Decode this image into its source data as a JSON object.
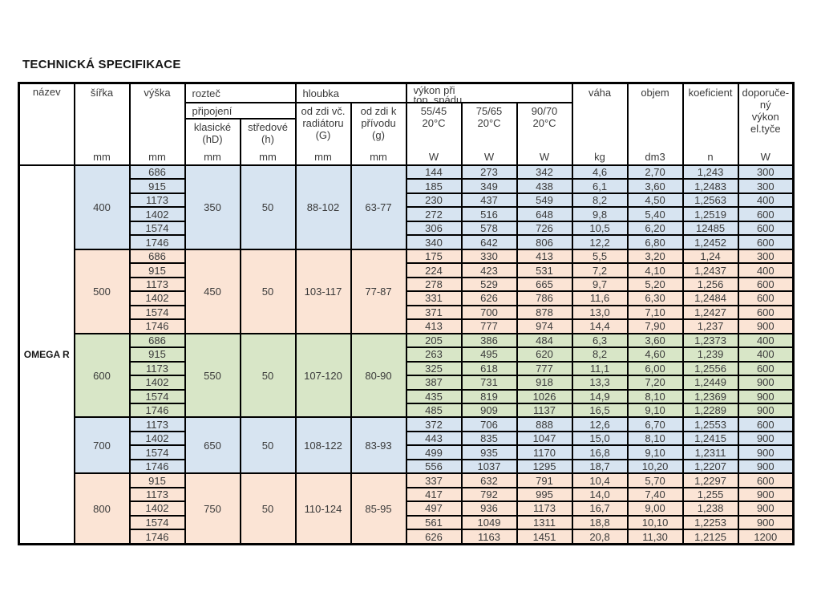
{
  "title": "TECHNICKÁ SPECIFIKACE",
  "product": "OMEGA R",
  "colors": {
    "blue": "#d7e4f1",
    "pink": "#fbe4d5",
    "green": "#d8e6c7",
    "white": "#ffffff",
    "border": "#000000",
    "text": "#3a3a3a"
  },
  "header": {
    "nazev": "název",
    "sirka": "šířka",
    "vyska": "výška",
    "roztec": "rozteč",
    "pripojeni": "připojení",
    "klasicke": [
      "klasické",
      "(hD)"
    ],
    "stredove": [
      "středové",
      "(h)"
    ],
    "hloubka": "hloubka",
    "od_zdi_vc": [
      "od zdi  vč.",
      "radiátoru",
      "(G)"
    ],
    "od_zdi_k": [
      "od zdi  k",
      "přívodu",
      "(g)"
    ],
    "vykon": [
      "výkon při",
      "top.  spádu"
    ],
    "t5545": [
      "55/45",
      "20°C"
    ],
    "t7565": [
      "75/65",
      "20°C"
    ],
    "t9070": [
      "90/70",
      "20°C"
    ],
    "vaha": "váha",
    "objem": "objem",
    "koeficient": "koeficient",
    "doporuceny": [
      "doporuče-",
      "ný",
      "výkon",
      "el.tyče"
    ],
    "units": {
      "mm": "mm",
      "w": "W",
      "kg": "kg",
      "dm3": "dm3",
      "n": "n"
    }
  },
  "groups": [
    {
      "color": "blue",
      "sirka": "400",
      "klasicke": "350",
      "stredove": "50",
      "hloubka_G": "88-102",
      "hloubka_g": "63-77",
      "rows": [
        [
          "686",
          "144",
          "273",
          "342",
          "4,6",
          "2,70",
          "1,243",
          "300"
        ],
        [
          "915",
          "185",
          "349",
          "438",
          "6,1",
          "3,60",
          "1,2483",
          "300"
        ],
        [
          "1173",
          "230",
          "437",
          "549",
          "8,2",
          "4,50",
          "1,2563",
          "400"
        ],
        [
          "1402",
          "272",
          "516",
          "648",
          "9,8",
          "5,40",
          "1,2519",
          "600"
        ],
        [
          "1574",
          "306",
          "578",
          "726",
          "10,5",
          "6,20",
          "12485",
          "600"
        ],
        [
          "1746",
          "340",
          "642",
          "806",
          "12,2",
          "6,80",
          "1,2452",
          "600"
        ]
      ]
    },
    {
      "color": "pink",
      "sirka": "500",
      "klasicke": "450",
      "stredove": "50",
      "hloubka_G": "103-117",
      "hloubka_g": "77-87",
      "rows": [
        [
          "686",
          "175",
          "330",
          "413",
          "5,5",
          "3,20",
          "1,24",
          "300"
        ],
        [
          "915",
          "224",
          "423",
          "531",
          "7,2",
          "4,10",
          "1,2437",
          "400"
        ],
        [
          "1173",
          "278",
          "529",
          "665",
          "9,7",
          "5,20",
          "1,256",
          "600"
        ],
        [
          "1402",
          "331",
          "626",
          "786",
          "11,6",
          "6,30",
          "1,2484",
          "600"
        ],
        [
          "1574",
          "371",
          "700",
          "878",
          "13,0",
          "7,10",
          "1,2427",
          "600"
        ],
        [
          "1746",
          "413",
          "777",
          "974",
          "14,4",
          "7,90",
          "1,237",
          "900"
        ]
      ]
    },
    {
      "color": "green",
      "sirka": "600",
      "klasicke": "550",
      "stredove": "50",
      "hloubka_G": "107-120",
      "hloubka_g": "80-90",
      "rows": [
        [
          "686",
          "205",
          "386",
          "484",
          "6,3",
          "3,60",
          "1,2373",
          "400"
        ],
        [
          "915",
          "263",
          "495",
          "620",
          "8,2",
          "4,60",
          "1,239",
          "400"
        ],
        [
          "1173",
          "325",
          "618",
          "777",
          "11,1",
          "6,00",
          "1,2556",
          "600"
        ],
        [
          "1402",
          "387",
          "731",
          "918",
          "13,3",
          "7,20",
          "1,2449",
          "900"
        ],
        [
          "1574",
          "435",
          "819",
          "1026",
          "14,9",
          "8,10",
          "1,2369",
          "900"
        ],
        [
          "1746",
          "485",
          "909",
          "1137",
          "16,5",
          "9,10",
          "1,2289",
          "900"
        ]
      ]
    },
    {
      "color": "blue",
      "sirka": "700",
      "klasicke": "650",
      "stredove": "50",
      "hloubka_G": "108-122",
      "hloubka_g": "83-93",
      "rows": [
        [
          "1173",
          "372",
          "706",
          "888",
          "12,6",
          "6,70",
          "1,2553",
          "600"
        ],
        [
          "1402",
          "443",
          "835",
          "1047",
          "15,0",
          "8,10",
          "1,2415",
          "900"
        ],
        [
          "1574",
          "499",
          "935",
          "1170",
          "16,8",
          "9,10",
          "1,2311",
          "900"
        ],
        [
          "1746",
          "556",
          "1037",
          "1295",
          "18,7",
          "10,20",
          "1,2207",
          "900"
        ]
      ]
    },
    {
      "color": "pink",
      "sirka": "800",
      "klasicke": "750",
      "stredove": "50",
      "hloubka_G": "110-124",
      "hloubka_g": "85-95",
      "rows": [
        [
          "915",
          "337",
          "632",
          "791",
          "10,4",
          "5,70",
          "1,2297",
          "600"
        ],
        [
          "1173",
          "417",
          "792",
          "995",
          "14,0",
          "7,40",
          "1,255",
          "900"
        ],
        [
          "1402",
          "497",
          "936",
          "1173",
          "16,7",
          "9,00",
          "1,238",
          "900"
        ],
        [
          "1574",
          "561",
          "1049",
          "1311",
          "18,8",
          "10,10",
          "1,2253",
          "900"
        ],
        [
          "1746",
          "626",
          "1163",
          "1451",
          "20,8",
          "11,30",
          "1,2125",
          "1200"
        ]
      ]
    }
  ]
}
